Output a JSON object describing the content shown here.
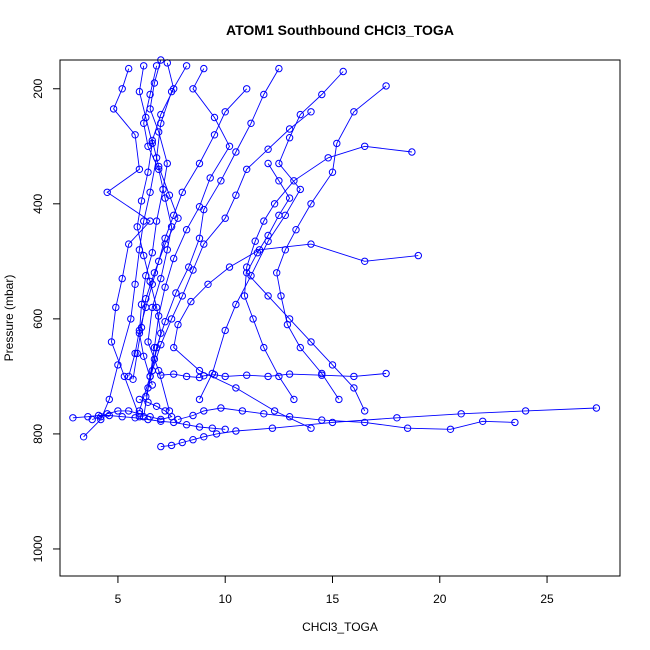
{
  "chart_data": {
    "type": "scatter",
    "title": "ATOM1 Southbound CHCl3_TOGA",
    "xlabel": "CHCl3_TOGA",
    "ylabel": "Pressure (mbar)",
    "xlim": [
      2.3,
      28.4
    ],
    "ylim": [
      1047,
      150
    ],
    "y_reversed": true,
    "x_ticks": [
      5,
      10,
      15,
      20,
      25
    ],
    "y_ticks": [
      200,
      400,
      600,
      800,
      1000
    ],
    "grid": false,
    "marker": "open-circle",
    "line_connected": true,
    "series_color": "#0000ff",
    "series": [
      {
        "x": [
          8.2,
          7.5,
          7.0,
          6.8,
          6.5,
          6.2,
          6.0,
          5.8,
          5.6,
          5.0,
          4.6,
          4.2,
          3.4
        ],
        "y": [
          160,
          205,
          260,
          320,
          380,
          430,
          480,
          540,
          600,
          680,
          740,
          775,
          805
        ]
      },
      {
        "x": [
          5.5,
          5.2,
          4.8,
          5.8,
          6.0,
          4.5,
          6.5,
          5.5,
          5.2,
          4.9,
          4.7,
          5.3,
          6.0
        ],
        "y": [
          165,
          200,
          235,
          280,
          340,
          380,
          430,
          470,
          530,
          580,
          640,
          700,
          770
        ]
      },
      {
        "x": [
          6.8,
          6.5,
          6.2,
          6.4,
          6.9,
          7.2,
          7.5,
          7.3,
          7.0,
          6.6,
          6.4,
          6.9,
          7.4
        ],
        "y": [
          160,
          210,
          260,
          300,
          340,
          390,
          440,
          480,
          530,
          580,
          640,
          690,
          760
        ]
      },
      {
        "x": [
          9.0,
          8.5,
          9.5,
          10.2,
          9.3,
          8.8,
          8.2,
          7.6,
          7.2,
          6.9,
          6.7,
          6.5,
          6.0
        ],
        "y": [
          165,
          200,
          250,
          300,
          355,
          405,
          445,
          495,
          545,
          595,
          650,
          700,
          760
        ]
      },
      {
        "x": [
          12.5,
          11.8,
          11.2,
          10.5,
          9.8,
          9.0,
          8.8,
          8.3,
          7.7,
          7.2,
          6.8,
          6.5,
          6.2
        ],
        "y": [
          165,
          210,
          260,
          310,
          360,
          410,
          460,
          510,
          555,
          605,
          650,
          700,
          770
        ]
      },
      {
        "x": [
          15.5,
          14.5,
          13.5,
          13.0,
          12.5,
          13.5,
          12.8,
          12.0,
          11.2,
          10.5,
          10.0,
          9.4,
          8.8
        ],
        "y": [
          170,
          210,
          245,
          285,
          330,
          375,
          420,
          465,
          525,
          575,
          620,
          695,
          740
        ]
      },
      {
        "x": [
          17.5,
          16.0,
          15.2,
          15.0,
          14.0,
          13.3,
          12.8,
          12.4,
          12.6,
          12.9,
          13.5,
          14.5,
          15.3
        ],
        "y": [
          195,
          240,
          295,
          345,
          400,
          445,
          480,
          520,
          560,
          610,
          650,
          695,
          740
        ]
      },
      {
        "x": [
          18.7,
          16.5,
          14.8,
          13.2,
          12.3,
          11.8,
          11.4,
          11.0,
          10.9,
          11.3,
          11.8,
          12.5,
          13.2
        ],
        "y": [
          310,
          300,
          320,
          360,
          400,
          430,
          465,
          510,
          560,
          600,
          650,
          700,
          740
        ]
      },
      {
        "x": [
          19.0,
          16.5,
          14.0,
          11.6,
          10.2,
          9.2,
          8.4,
          7.8,
          7.6,
          8.8,
          10.5,
          12.3,
          14.0
        ],
        "y": [
          490,
          500,
          470,
          480,
          510,
          540,
          570,
          610,
          650,
          690,
          720,
          760,
          790
        ]
      },
      {
        "x": [
          27.3,
          24.0,
          21.0,
          18.0,
          15.0,
          12.2,
          10.5,
          9.6,
          9.0,
          8.5,
          8.0,
          7.5,
          7.0
        ],
        "y": [
          755,
          760,
          765,
          772,
          780,
          790,
          795,
          800,
          805,
          810,
          815,
          820,
          822
        ]
      },
      {
        "x": [
          23.5,
          22.0,
          20.5,
          18.5,
          16.5,
          14.5,
          13.0,
          11.8,
          10.8,
          9.8,
          9.0,
          8.5,
          7.8
        ],
        "y": [
          780,
          778,
          792,
          790,
          780,
          776,
          770,
          765,
          760,
          755,
          760,
          768,
          775
        ]
      },
      {
        "x": [
          17.5,
          16.0,
          14.5,
          13.0,
          12.0,
          11.0,
          10.0,
          9.5,
          9.0,
          8.8,
          8.2,
          7.6,
          7.0
        ],
        "y": [
          695,
          700,
          698,
          696,
          700,
          698,
          700,
          697,
          699,
          702,
          700,
          696,
          698
        ]
      },
      {
        "x": [
          3.8,
          4.2,
          4.5,
          5.0,
          5.5,
          6.0,
          6.5,
          7.0,
          7.5,
          7.2,
          6.8,
          6.4,
          6.0
        ],
        "y": [
          775,
          770,
          765,
          760,
          760,
          765,
          770,
          775,
          770,
          760,
          752,
          745,
          740
        ]
      },
      {
        "x": [
          2.9,
          3.6,
          4.1,
          4.6,
          5.2,
          5.8,
          6.4,
          7.0,
          7.6,
          8.2,
          8.8,
          9.4,
          10.0
        ],
        "y": [
          772,
          770,
          768,
          768,
          770,
          772,
          775,
          778,
          780,
          784,
          788,
          790,
          792
        ]
      },
      {
        "x": [
          7.0,
          6.7,
          6.5,
          6.9,
          7.3,
          7.1,
          6.8,
          6.6,
          6.3,
          6.1,
          6.0,
          6.2,
          6.6
        ],
        "y": [
          150,
          190,
          235,
          275,
          330,
          375,
          430,
          485,
          525,
          575,
          625,
          665,
          715
        ]
      },
      {
        "x": [
          7.3,
          7.6,
          7.0,
          6.6,
          6.9,
          7.4,
          7.8,
          7.2,
          6.7,
          6.3,
          6.1,
          5.9,
          5.7
        ],
        "y": [
          155,
          200,
          245,
          290,
          335,
          385,
          425,
          470,
          520,
          565,
          615,
          660,
          705
        ]
      },
      {
        "x": [
          6.2,
          6.0,
          6.3,
          6.6,
          6.4,
          6.1,
          5.9,
          6.2,
          6.5,
          6.8,
          7.0,
          6.7,
          6.4
        ],
        "y": [
          160,
          205,
          250,
          295,
          345,
          395,
          440,
          490,
          535,
          580,
          625,
          670,
          720
        ]
      },
      {
        "x": [
          11.0,
          10.0,
          9.5,
          8.8,
          8.0,
          7.6,
          7.2,
          6.9,
          6.6,
          6.3,
          6.0,
          5.8,
          5.5
        ],
        "y": [
          200,
          240,
          280,
          330,
          380,
          420,
          460,
          500,
          540,
          580,
          620,
          660,
          700
        ]
      },
      {
        "x": [
          14.0,
          13.0,
          12.0,
          11.0,
          10.5,
          10.0,
          9.0,
          8.5,
          8.0,
          7.5,
          7.0,
          6.6,
          6.3
        ],
        "y": [
          240,
          270,
          305,
          340,
          385,
          425,
          470,
          515,
          560,
          600,
          645,
          690,
          735
        ]
      },
      {
        "x": [
          12.0,
          12.5,
          13.0,
          12.5,
          12.0,
          11.5,
          11.0,
          12.0,
          13.0,
          14.0,
          15.0,
          16.0,
          16.5
        ],
        "y": [
          330,
          360,
          390,
          420,
          455,
          485,
          520,
          560,
          600,
          640,
          680,
          720,
          760
        ]
      }
    ]
  }
}
